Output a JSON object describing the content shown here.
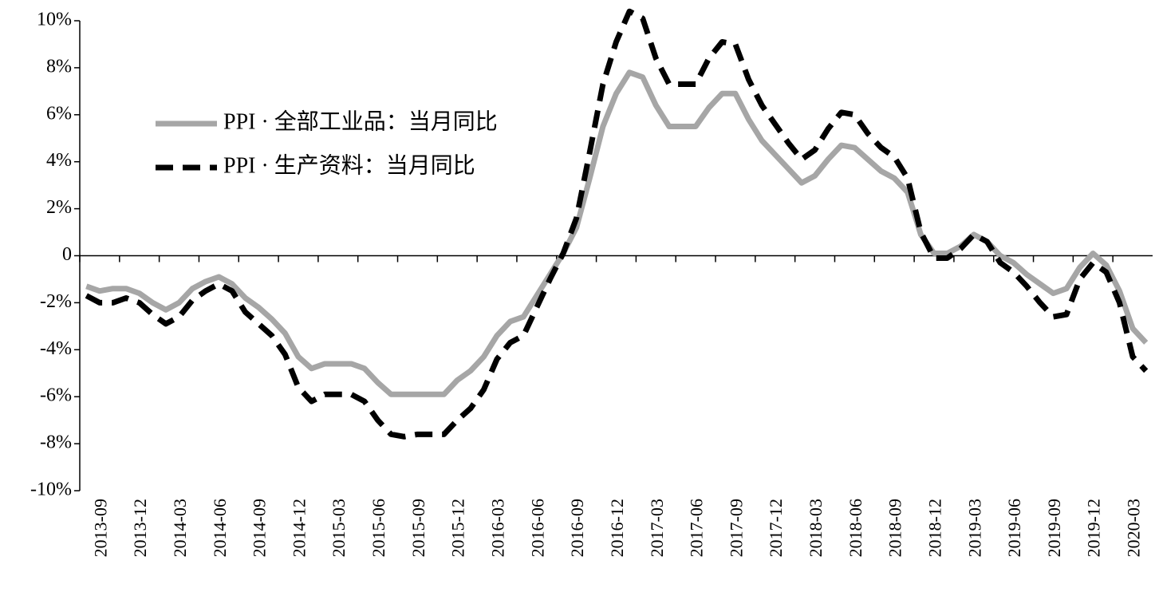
{
  "chart_data": {
    "type": "line",
    "categories": [
      "2013-09",
      null,
      null,
      "2013-12",
      null,
      null,
      "2014-03",
      null,
      null,
      "2014-06",
      null,
      null,
      "2014-09",
      null,
      null,
      "2014-12",
      null,
      null,
      "2015-03",
      null,
      null,
      "2015-06",
      null,
      null,
      "2015-09",
      null,
      null,
      "2015-12",
      null,
      null,
      "2016-03",
      null,
      null,
      "2016-06",
      null,
      null,
      "2016-09",
      null,
      null,
      "2016-12",
      null,
      null,
      "2017-03",
      null,
      null,
      "2017-06",
      null,
      null,
      "2017-09",
      null,
      null,
      "2017-12",
      null,
      null,
      "2018-03",
      null,
      null,
      "2018-06",
      null,
      null,
      "2018-09",
      null,
      null,
      "2018-12",
      null,
      null,
      "2019-03",
      null,
      null,
      "2019-06",
      null,
      null,
      "2019-09",
      null,
      null,
      "2019-12",
      null,
      null,
      "2020-03",
      null,
      null
    ],
    "series": [
      {
        "name": "PPI · 全部工业品：当月同比",
        "color": "#a6a6a6",
        "dash": false,
        "values": [
          -1.3,
          -1.5,
          -1.4,
          -1.4,
          -1.6,
          -2.0,
          -2.3,
          -2.0,
          -1.4,
          -1.1,
          -0.9,
          -1.2,
          -1.8,
          -2.2,
          -2.7,
          -3.3,
          -4.3,
          -4.8,
          -4.6,
          -4.6,
          -4.6,
          -4.8,
          -5.4,
          -5.9,
          -5.9,
          -5.9,
          -5.9,
          -5.9,
          -5.3,
          -4.9,
          -4.3,
          -3.4,
          -2.8,
          -2.6,
          -1.7,
          -0.8,
          0.1,
          1.2,
          3.3,
          5.5,
          6.9,
          7.8,
          7.6,
          6.4,
          5.5,
          5.5,
          5.5,
          6.3,
          6.9,
          6.9,
          5.8,
          4.9,
          4.3,
          3.7,
          3.1,
          3.4,
          4.1,
          4.7,
          4.6,
          4.1,
          3.6,
          3.3,
          2.7,
          0.9,
          0.1,
          0.1,
          0.4,
          0.9,
          0.6,
          0.0,
          -0.3,
          -0.8,
          -1.2,
          -1.6,
          -1.4,
          -0.5,
          0.1,
          -0.4,
          -1.5,
          -3.1,
          -3.7
        ]
      },
      {
        "name": "PPI · 生产资料：当月同比",
        "color": "#000000",
        "dash": true,
        "values": [
          -1.7,
          -2.0,
          -2.0,
          -1.8,
          -2.0,
          -2.5,
          -2.9,
          -2.6,
          -1.9,
          -1.5,
          -1.2,
          -1.5,
          -2.4,
          -2.9,
          -3.4,
          -4.2,
          -5.6,
          -6.2,
          -5.9,
          -5.9,
          -5.9,
          -6.2,
          -7.0,
          -7.6,
          -7.7,
          -7.6,
          -7.6,
          -7.6,
          -7.0,
          -6.5,
          -5.7,
          -4.4,
          -3.7,
          -3.4,
          -2.2,
          -1.0,
          0.1,
          1.6,
          4.4,
          7.3,
          9.1,
          10.4,
          10.1,
          8.4,
          7.3,
          7.3,
          7.3,
          8.4,
          9.1,
          9.0,
          7.5,
          6.4,
          5.6,
          4.8,
          4.1,
          4.5,
          5.4,
          6.1,
          6.0,
          5.2,
          4.6,
          4.2,
          3.3,
          1.0,
          -0.1,
          -0.1,
          0.3,
          0.9,
          0.6,
          -0.3,
          -0.7,
          -1.3,
          -2.0,
          -2.6,
          -2.5,
          -1.0,
          -0.3,
          -0.7,
          -2.0,
          -4.3,
          -4.9
        ]
      }
    ],
    "ylim": [
      -10,
      10
    ],
    "yticks": [
      {
        "value": -10,
        "label": "-10%"
      },
      {
        "value": -8,
        "label": "-8%"
      },
      {
        "value": -6,
        "label": "-6%"
      },
      {
        "value": -4,
        "label": "-4%"
      },
      {
        "value": -2,
        "label": "-2%"
      },
      0,
      {
        "value": 2,
        "label": "2%"
      },
      {
        "value": 4,
        "label": "4%"
      },
      {
        "value": 6,
        "label": "6%"
      },
      {
        "value": 8,
        "label": "8%"
      },
      {
        "value": 10,
        "label": "10%"
      }
    ],
    "legend": "upper left"
  }
}
